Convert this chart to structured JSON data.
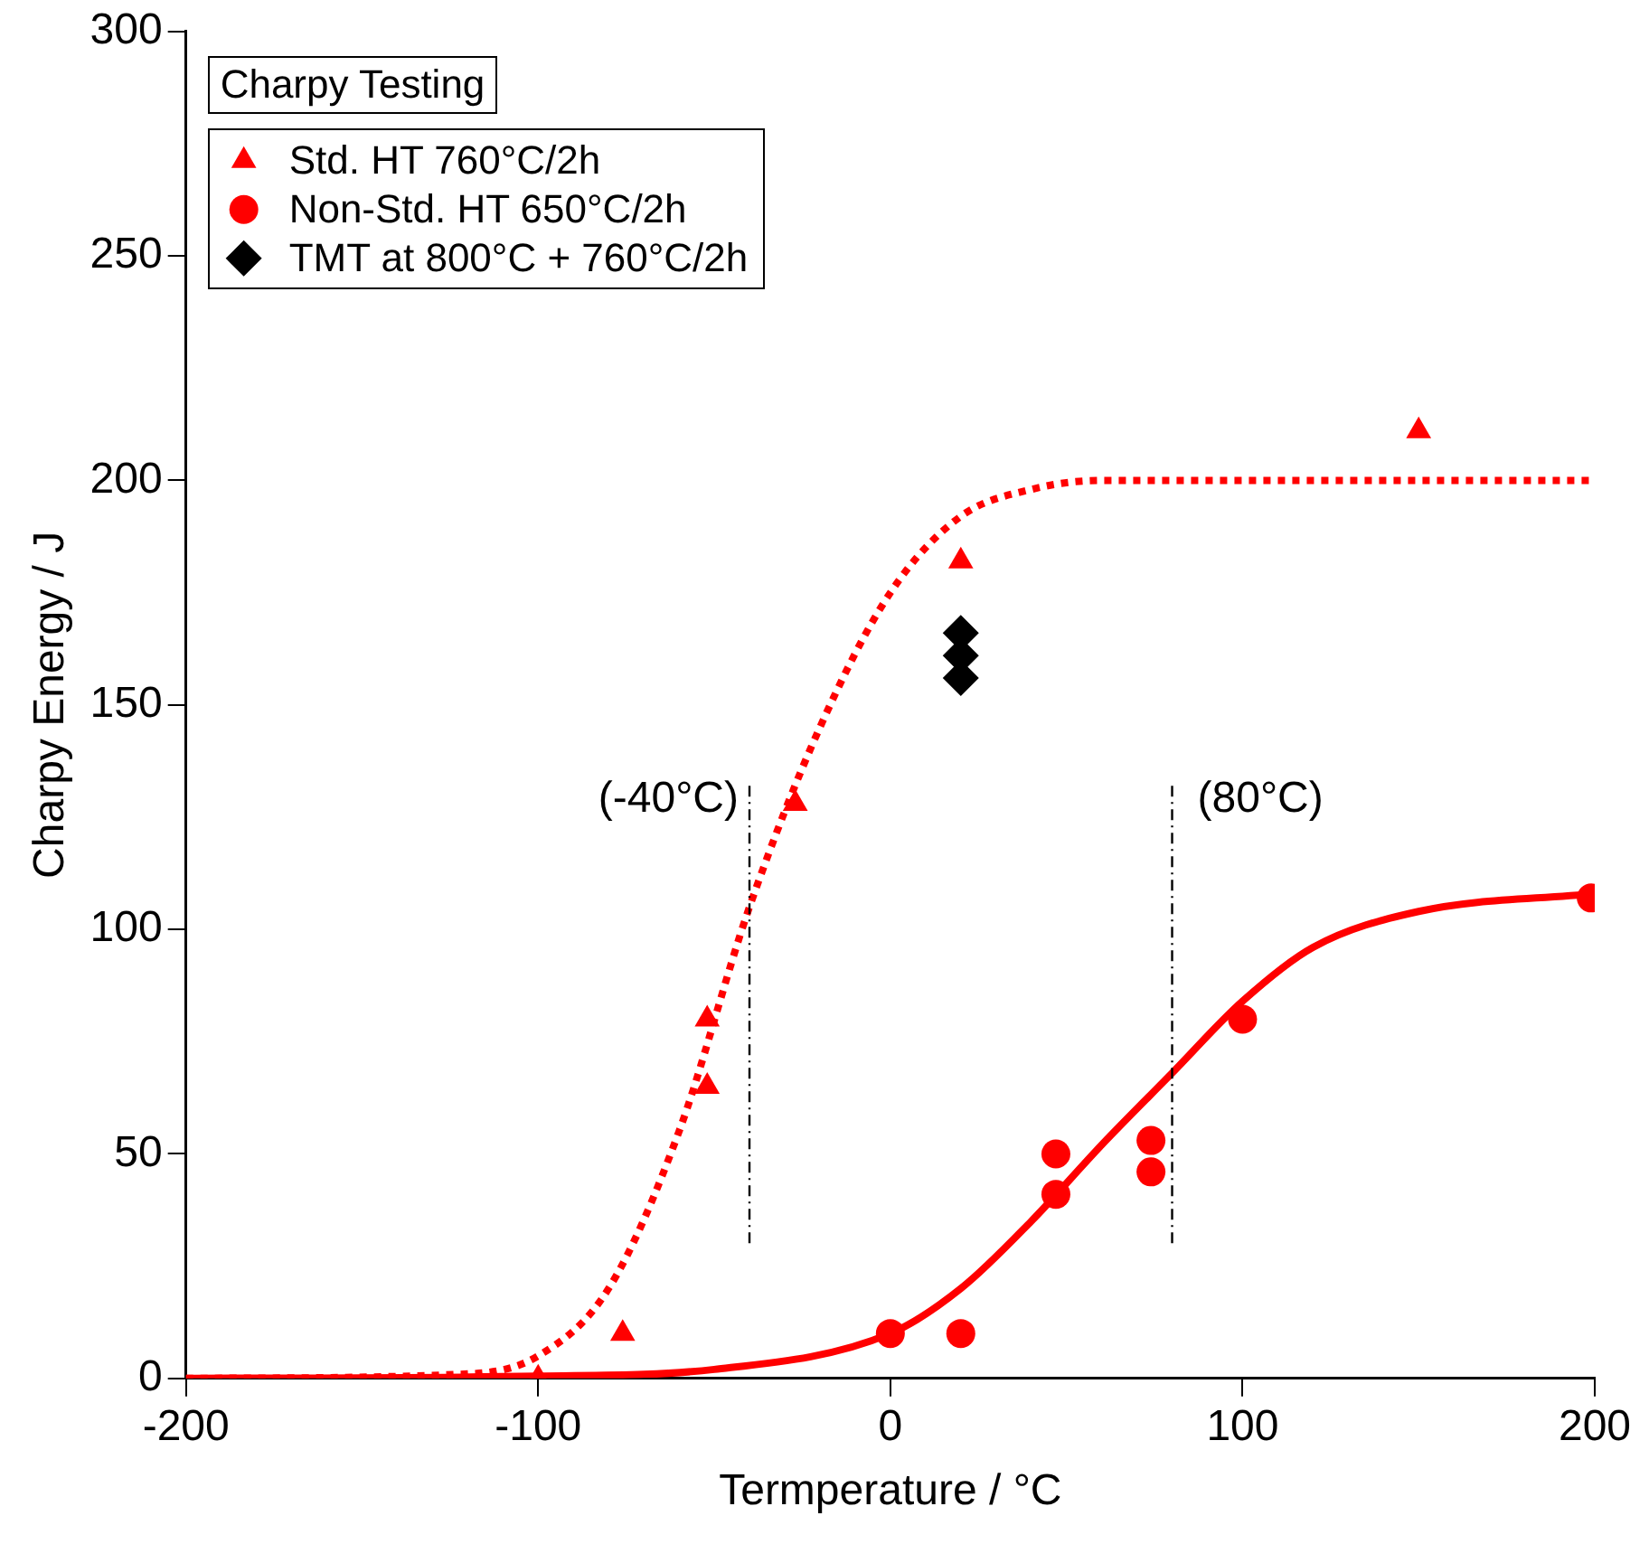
{
  "chart_data": {
    "type": "scatter",
    "xlabel": "Termperature / °C",
    "ylabel": "Charpy Energy / J",
    "legend_title": "Charpy Testing",
    "legend": "top left",
    "grid": false,
    "xlim": [
      -200,
      200
    ],
    "xticks": [
      -200,
      -100,
      0,
      100,
      200
    ],
    "ylim": [
      0,
      300
    ],
    "yticks": [
      0,
      50,
      100,
      150,
      200,
      250,
      300
    ],
    "series": [
      {
        "name": "Std. HT 760°C/2h",
        "type": "scatter",
        "marker": "triangle",
        "color": "#ff0000",
        "x": [
          -100,
          -76,
          -52,
          -52,
          -27,
          20,
          150
        ],
        "values": [
          0,
          10,
          80,
          65,
          128,
          182,
          211
        ]
      },
      {
        "name": "Non-Std. HT 650°C/2h",
        "type": "scatter",
        "marker": "circle",
        "color": "#ff0000",
        "x": [
          0,
          20,
          47,
          47,
          74,
          74,
          100,
          199
        ],
        "values": [
          10,
          10,
          50,
          41,
          53,
          46,
          80,
          107
        ]
      },
      {
        "name": "TMT at 800°C + 760°C/2h",
        "type": "scatter",
        "marker": "diamond",
        "color": "#000000",
        "x": [
          20,
          20,
          20
        ],
        "values": [
          166,
          161,
          156
        ]
      },
      {
        "type": "line",
        "marker": "none",
        "line_style": "dotted",
        "color": "#ff0000",
        "x": [
          -200,
          -120,
          -100,
          -80,
          -60,
          -40,
          -20,
          0,
          20,
          40,
          60,
          200
        ],
        "values": [
          0,
          1,
          5,
          20,
          55,
          105,
          145,
          175,
          192,
          198,
          200,
          200
        ]
      },
      {
        "type": "line",
        "marker": "none",
        "line_style": "solid",
        "color": "#ff0000",
        "x": [
          -200,
          -100,
          -50,
          0,
          20,
          40,
          60,
          80,
          100,
          120,
          150,
          200
        ],
        "values": [
          0,
          0.5,
          2,
          10,
          20,
          35,
          52,
          68,
          84,
          96,
          104,
          108
        ]
      }
    ],
    "ref_lines": [
      {
        "axis": "x",
        "value": -40,
        "label": "(-40°C)",
        "color": "#000000",
        "line_style": "dashdot"
      },
      {
        "axis": "x",
        "value": 80,
        "label": "(80°C)",
        "color": "#000000",
        "line_style": "dashdot"
      }
    ]
  }
}
